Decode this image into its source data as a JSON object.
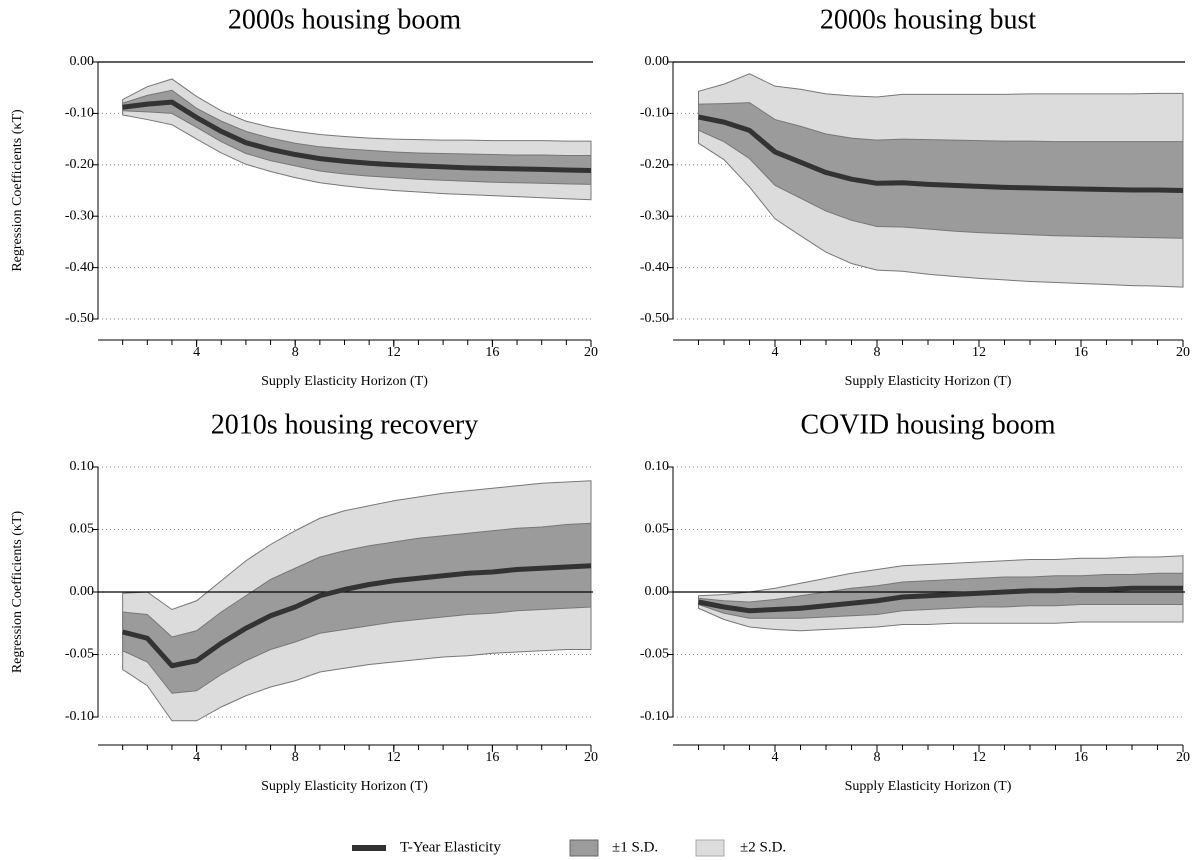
{
  "legend": [
    {
      "name": "T-Year Elasticity",
      "color": "#333333"
    },
    {
      "name": "±1 S.D.",
      "color": "#9b9b9b"
    },
    {
      "name": "±2 S.D.",
      "color": "#dcdcdc"
    }
  ],
  "chart_data": [
    {
      "type": "band-line",
      "title": "2000s housing boom",
      "xlabel": "Supply Elasticity Horizon (T)",
      "ylabel": "Regression Coefficients (κT)",
      "x": [
        1,
        2,
        3,
        4,
        5,
        6,
        7,
        8,
        9,
        10,
        11,
        12,
        13,
        14,
        15,
        16,
        17,
        18,
        19,
        20
      ],
      "xlim": [
        0,
        20
      ],
      "xticks": [
        4,
        8,
        12,
        16,
        20
      ],
      "ylim": [
        -0.5,
        0
      ],
      "yticks": [
        {
          "value": 0,
          "label": "0.00"
        },
        {
          "value": -0.1,
          "label": "-0.10"
        },
        {
          "value": -0.2,
          "label": "-0.20"
        },
        {
          "value": -0.3,
          "label": "-0.30"
        },
        {
          "value": -0.4,
          "label": "-0.40"
        },
        {
          "value": -0.5,
          "label": "-0.50"
        }
      ],
      "grid": true,
      "line": [
        -0.088,
        -0.082,
        -0.078,
        -0.108,
        -0.135,
        -0.157,
        -0.17,
        -0.18,
        -0.188,
        -0.193,
        -0.197,
        -0.2,
        -0.202,
        -0.204,
        -0.206,
        -0.207,
        -0.208,
        -0.209,
        -0.21,
        -0.211
      ],
      "band1": {
        "upper": [
          -0.08,
          -0.065,
          -0.055,
          -0.09,
          -0.115,
          -0.135,
          -0.148,
          -0.158,
          -0.165,
          -0.169,
          -0.172,
          -0.175,
          -0.177,
          -0.178,
          -0.179,
          -0.18,
          -0.181,
          -0.181,
          -0.182,
          -0.182
        ],
        "lower": [
          -0.095,
          -0.097,
          -0.1,
          -0.127,
          -0.155,
          -0.178,
          -0.192,
          -0.202,
          -0.212,
          -0.218,
          -0.222,
          -0.225,
          -0.228,
          -0.23,
          -0.232,
          -0.234,
          -0.235,
          -0.236,
          -0.237,
          -0.238
        ]
      },
      "band2": {
        "upper": [
          -0.073,
          -0.048,
          -0.033,
          -0.067,
          -0.095,
          -0.115,
          -0.127,
          -0.135,
          -0.141,
          -0.145,
          -0.148,
          -0.15,
          -0.151,
          -0.152,
          -0.152,
          -0.153,
          -0.153,
          -0.153,
          -0.154,
          -0.154
        ],
        "lower": [
          -0.103,
          -0.112,
          -0.122,
          -0.15,
          -0.177,
          -0.199,
          -0.213,
          -0.225,
          -0.235,
          -0.241,
          -0.246,
          -0.25,
          -0.253,
          -0.256,
          -0.258,
          -0.26,
          -0.262,
          -0.264,
          -0.266,
          -0.268
        ]
      }
    },
    {
      "type": "band-line",
      "title": "2000s housing bust",
      "xlabel": "Supply Elasticity Horizon (T)",
      "x": [
        1,
        2,
        3,
        4,
        5,
        6,
        7,
        8,
        9,
        10,
        11,
        12,
        13,
        14,
        15,
        16,
        17,
        18,
        19,
        20
      ],
      "xlim": [
        0,
        20
      ],
      "xticks": [
        4,
        8,
        12,
        16,
        20
      ],
      "ylim": [
        -0.5,
        0
      ],
      "yticks": [
        {
          "value": 0,
          "label": "0.00"
        },
        {
          "value": -0.1,
          "label": "-0.10"
        },
        {
          "value": -0.2,
          "label": "-0.20"
        },
        {
          "value": -0.3,
          "label": "-0.30"
        },
        {
          "value": -0.4,
          "label": "-0.40"
        },
        {
          "value": -0.5,
          "label": "-0.50"
        }
      ],
      "grid": true,
      "line": [
        -0.107,
        -0.117,
        -0.133,
        -0.175,
        -0.195,
        -0.215,
        -0.228,
        -0.236,
        -0.235,
        -0.238,
        -0.24,
        -0.242,
        -0.244,
        -0.245,
        -0.246,
        -0.247,
        -0.248,
        -0.249,
        -0.249,
        -0.25
      ],
      "band1": {
        "upper": [
          -0.082,
          -0.081,
          -0.079,
          -0.112,
          -0.125,
          -0.14,
          -0.148,
          -0.152,
          -0.15,
          -0.151,
          -0.152,
          -0.153,
          -0.154,
          -0.154,
          -0.155,
          -0.155,
          -0.155,
          -0.155,
          -0.155,
          -0.155
        ],
        "lower": [
          -0.133,
          -0.155,
          -0.188,
          -0.24,
          -0.265,
          -0.29,
          -0.308,
          -0.32,
          -0.321,
          -0.325,
          -0.329,
          -0.332,
          -0.334,
          -0.336,
          -0.338,
          -0.339,
          -0.34,
          -0.341,
          -0.342,
          -0.343
        ]
      },
      "band2": {
        "upper": [
          -0.057,
          -0.043,
          -0.023,
          -0.047,
          -0.053,
          -0.062,
          -0.066,
          -0.068,
          -0.063,
          -0.063,
          -0.063,
          -0.063,
          -0.063,
          -0.062,
          -0.062,
          -0.062,
          -0.062,
          -0.062,
          -0.061,
          -0.061
        ],
        "lower": [
          -0.158,
          -0.19,
          -0.243,
          -0.305,
          -0.338,
          -0.37,
          -0.392,
          -0.405,
          -0.407,
          -0.413,
          -0.417,
          -0.421,
          -0.424,
          -0.427,
          -0.429,
          -0.431,
          -0.433,
          -0.435,
          -0.436,
          -0.438
        ]
      }
    },
    {
      "type": "band-line",
      "title": "2010s housing recovery",
      "xlabel": "Supply Elasticity Horizon (T)",
      "ylabel": "Regression Coefficients (κT)",
      "x": [
        1,
        2,
        3,
        4,
        5,
        6,
        7,
        8,
        9,
        10,
        11,
        12,
        13,
        14,
        15,
        16,
        17,
        18,
        19,
        20
      ],
      "xlim": [
        0,
        20
      ],
      "xticks": [
        4,
        8,
        12,
        16,
        20
      ],
      "ylim": [
        -0.1,
        0.1
      ],
      "yticks": [
        {
          "value": 0.1,
          "label": "0.10"
        },
        {
          "value": 0.05,
          "label": "0.05"
        },
        {
          "value": 0,
          "label": "0.00"
        },
        {
          "value": -0.05,
          "label": "-0.05"
        },
        {
          "value": -0.1,
          "label": "-0.10"
        }
      ],
      "grid": true,
      "line": [
        -0.032,
        -0.037,
        -0.059,
        -0.055,
        -0.041,
        -0.029,
        -0.019,
        -0.012,
        -0.003,
        0.002,
        0.006,
        0.009,
        0.011,
        0.013,
        0.015,
        0.016,
        0.018,
        0.019,
        0.02,
        0.021
      ],
      "band1": {
        "upper": [
          -0.016,
          -0.018,
          -0.036,
          -0.031,
          -0.016,
          -0.003,
          0.01,
          0.019,
          0.028,
          0.033,
          0.037,
          0.04,
          0.043,
          0.045,
          0.047,
          0.049,
          0.051,
          0.052,
          0.054,
          0.055
        ],
        "lower": [
          -0.047,
          -0.056,
          -0.081,
          -0.079,
          -0.066,
          -0.055,
          -0.046,
          -0.04,
          -0.033,
          -0.03,
          -0.027,
          -0.024,
          -0.022,
          -0.02,
          -0.018,
          -0.017,
          -0.015,
          -0.014,
          -0.013,
          -0.012
        ]
      },
      "band2": {
        "upper": [
          -0.001,
          0.0,
          -0.014,
          -0.007,
          0.009,
          0.025,
          0.038,
          0.049,
          0.059,
          0.065,
          0.069,
          0.073,
          0.076,
          0.079,
          0.081,
          0.083,
          0.085,
          0.087,
          0.088,
          0.089
        ],
        "lower": [
          -0.062,
          -0.075,
          -0.103,
          -0.103,
          -0.092,
          -0.083,
          -0.076,
          -0.071,
          -0.064,
          -0.061,
          -0.058,
          -0.056,
          -0.054,
          -0.052,
          -0.051,
          -0.049,
          -0.048,
          -0.047,
          -0.046,
          -0.046
        ]
      }
    },
    {
      "type": "band-line",
      "title": "COVID housing boom",
      "xlabel": "Supply Elasticity Horizon (T)",
      "x": [
        1,
        2,
        3,
        4,
        5,
        6,
        7,
        8,
        9,
        10,
        11,
        12,
        13,
        14,
        15,
        16,
        17,
        18,
        19,
        20
      ],
      "xlim": [
        0,
        20
      ],
      "xticks": [
        4,
        8,
        12,
        16,
        20
      ],
      "ylim": [
        -0.1,
        0.1
      ],
      "yticks": [
        {
          "value": 0.1,
          "label": "0.10"
        },
        {
          "value": 0.05,
          "label": "0.05"
        },
        {
          "value": 0,
          "label": "0.00"
        },
        {
          "value": -0.05,
          "label": "-0.05"
        },
        {
          "value": -0.1,
          "label": "-0.10"
        }
      ],
      "grid": true,
      "line": [
        -0.008,
        -0.012,
        -0.015,
        -0.014,
        -0.013,
        -0.011,
        -0.009,
        -0.007,
        -0.004,
        -0.003,
        -0.002,
        -0.001,
        0.0,
        0.001,
        0.001,
        0.002,
        0.002,
        0.003,
        0.003,
        0.003
      ],
      "band1": {
        "upper": [
          -0.005,
          -0.007,
          -0.008,
          -0.006,
          -0.003,
          0.0,
          0.003,
          0.005,
          0.008,
          0.009,
          0.01,
          0.011,
          0.012,
          0.012,
          0.013,
          0.013,
          0.014,
          0.014,
          0.015,
          0.015
        ],
        "lower": [
          -0.01,
          -0.017,
          -0.021,
          -0.021,
          -0.021,
          -0.02,
          -0.019,
          -0.018,
          -0.015,
          -0.014,
          -0.013,
          -0.012,
          -0.012,
          -0.011,
          -0.011,
          -0.01,
          -0.01,
          -0.01,
          -0.01,
          -0.01
        ]
      },
      "band2": {
        "upper": [
          -0.003,
          -0.002,
          0.0,
          0.003,
          0.007,
          0.011,
          0.015,
          0.018,
          0.021,
          0.022,
          0.023,
          0.024,
          0.025,
          0.026,
          0.026,
          0.027,
          0.027,
          0.028,
          0.028,
          0.029
        ],
        "lower": [
          -0.013,
          -0.022,
          -0.028,
          -0.03,
          -0.031,
          -0.03,
          -0.029,
          -0.028,
          -0.026,
          -0.026,
          -0.025,
          -0.025,
          -0.025,
          -0.025,
          -0.025,
          -0.024,
          -0.024,
          -0.024,
          -0.024,
          -0.024
        ]
      }
    }
  ]
}
